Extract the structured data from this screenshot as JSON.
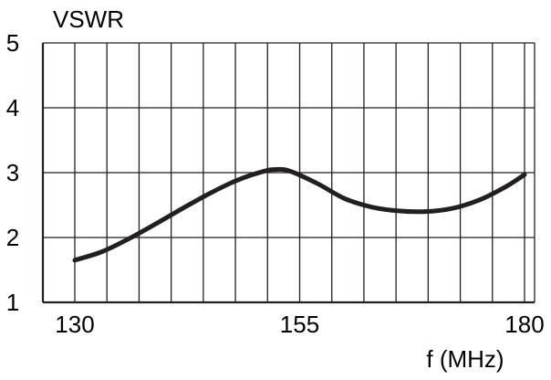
{
  "chart_data": {
    "type": "line",
    "ylabel": "VSWR",
    "xlabel": "f (MHz)",
    "xlim": [
      130,
      180
    ],
    "ylim": [
      1,
      5
    ],
    "x_ticks": [
      {
        "value": 130,
        "label": "130"
      },
      {
        "value": 155,
        "label": "155"
      },
      {
        "value": 180,
        "label": "180"
      }
    ],
    "y_ticks": [
      {
        "value": 1,
        "label": "1"
      },
      {
        "value": 2,
        "label": "2"
      },
      {
        "value": 3,
        "label": "3"
      },
      {
        "value": 4,
        "label": "4"
      },
      {
        "value": 5,
        "label": "5"
      }
    ],
    "grid": true,
    "grid_vertical_count": 14,
    "series": [
      {
        "color": "#231f20",
        "x": [
          130,
          133,
          136,
          139,
          142,
          145,
          148,
          151,
          152.5,
          154,
          157,
          160,
          163,
          166,
          169,
          172,
          175,
          178,
          180
        ],
        "y": [
          1.65,
          1.78,
          1.98,
          2.21,
          2.45,
          2.68,
          2.88,
          3.02,
          3.05,
          3.02,
          2.83,
          2.6,
          2.47,
          2.41,
          2.4,
          2.45,
          2.58,
          2.79,
          2.97
        ]
      }
    ]
  },
  "colors": {
    "grid": "#231f20",
    "axis": "#231f20",
    "curve": "#231f20",
    "background": "#ffffff"
  }
}
